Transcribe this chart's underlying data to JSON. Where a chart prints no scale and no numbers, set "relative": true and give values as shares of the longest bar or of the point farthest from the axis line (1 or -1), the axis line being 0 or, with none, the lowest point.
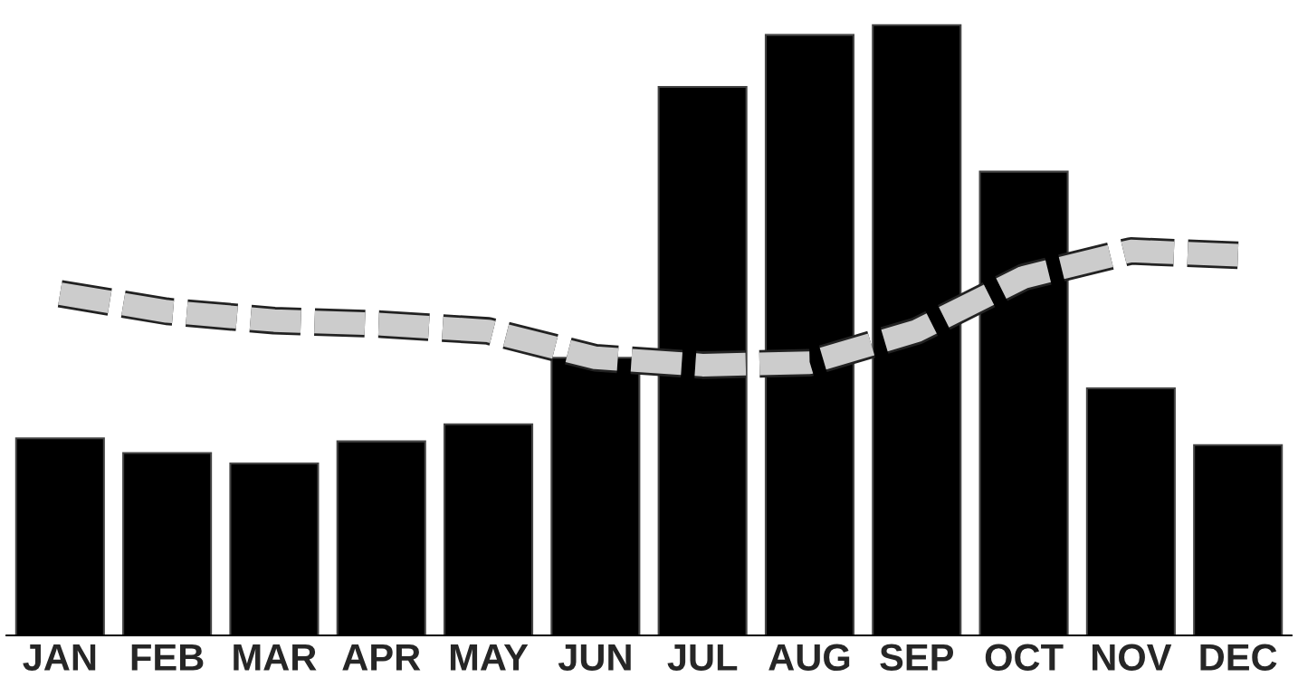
{
  "chart_data": {
    "type": "bar",
    "relative": true,
    "categories": [
      "JAN",
      "FEB",
      "MAR",
      "APR",
      "MAY",
      "JUN",
      "JUL",
      "AUG",
      "SEP",
      "OCT",
      "NOV",
      "DEC"
    ],
    "series": [
      {
        "color": "#000000",
        "values": [
          0.323,
          0.299,
          0.282,
          0.318,
          0.346,
          0.455,
          0.899,
          0.984,
          1,
          0.76,
          0.405,
          0.312
        ]
      },
      {
        "type": "line",
        "color": "#cccccc",
        "line_style": "dashed",
        "values": [
          0.56,
          0.531,
          0.516,
          0.51,
          0.499,
          0.455,
          0.443,
          0.447,
          0.499,
          0.587,
          0.63,
          0.623
        ]
      }
    ],
    "grid": false,
    "legend": false
  }
}
